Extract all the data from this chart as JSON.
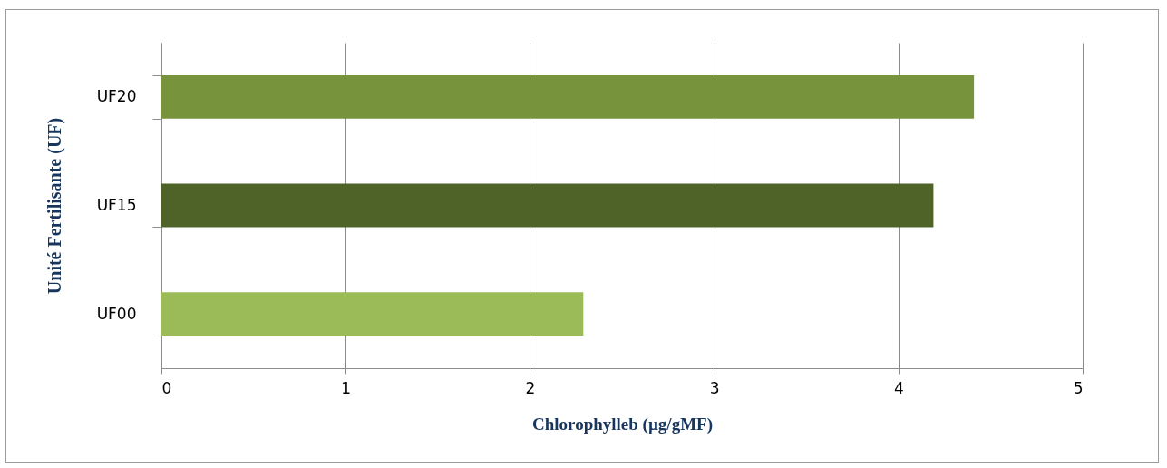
{
  "chart_data": {
    "type": "bar",
    "orientation": "horizontal",
    "xlabel": "Chlorophylleb (µg/gMF)",
    "ylabel": "Unité Fertilisante (UF)",
    "categories": [
      "UF20",
      "UF15",
      "UF00"
    ],
    "values": [
      4.41,
      4.19,
      2.29
    ],
    "colors": [
      "#77933c",
      "#4f6228",
      "#9bbb59"
    ],
    "xlim": [
      0,
      5
    ],
    "xticks": [
      0,
      1,
      2,
      3,
      4,
      5
    ],
    "grid": "x",
    "legend": false
  }
}
